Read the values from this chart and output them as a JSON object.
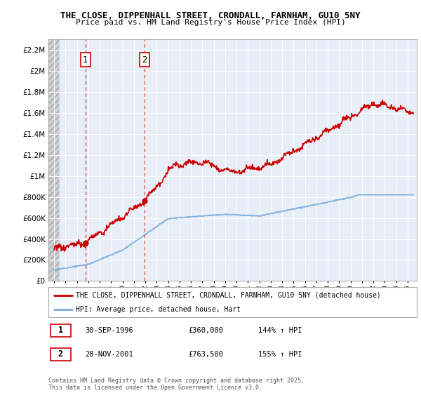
{
  "title1": "THE CLOSE, DIPPENHALL STREET, CRONDALL, FARNHAM, GU10 5NY",
  "title2": "Price paid vs. HM Land Registry's House Price Index (HPI)",
  "legend_line1": "THE CLOSE, DIPPENHALL STREET, CRONDALL, FARNHAM, GU10 5NY (detached house)",
  "legend_line2": "HPI: Average price, detached house, Hart",
  "annotation1_label": "1",
  "annotation1_date": "30-SEP-1996",
  "annotation1_price": "£360,000",
  "annotation1_hpi": "144% ↑ HPI",
  "annotation2_label": "2",
  "annotation2_date": "28-NOV-2001",
  "annotation2_price": "£763,500",
  "annotation2_hpi": "155% ↑ HPI",
  "copyright": "Contains HM Land Registry data © Crown copyright and database right 2025.\nThis data is licensed under the Open Government Licence v3.0.",
  "line1_color": "#cc0000",
  "line2_color": "#7aaddc",
  "point1_x": 1996.75,
  "point1_y": 360000,
  "point2_x": 2001.92,
  "point2_y": 763500,
  "vline1_x": 1996.75,
  "vline2_x": 2001.92,
  "ylim_max": 2300000,
  "xlim_min": 1993.5,
  "xlim_max": 2025.8,
  "yticks": [
    0,
    200000,
    400000,
    600000,
    800000,
    1000000,
    1200000,
    1400000,
    1600000,
    1800000,
    2000000,
    2200000
  ]
}
